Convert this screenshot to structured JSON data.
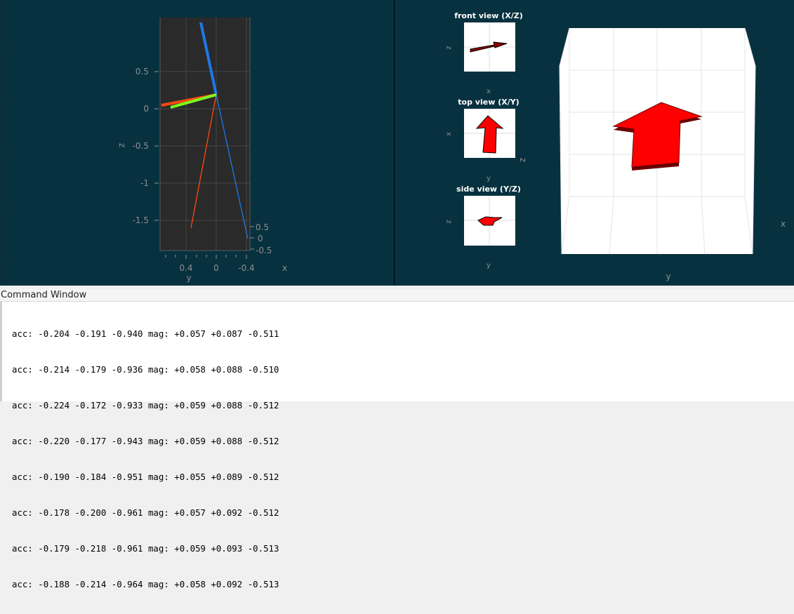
{
  "left_plot": {
    "z_ticks": [
      "0.5",
      "0",
      "-0.5",
      "-1",
      "-1.5"
    ],
    "z_label": "z",
    "y_ticks": [
      "0.4",
      "0",
      "-0.4"
    ],
    "y_label": "y",
    "x_ticks": [
      "0.5",
      "0",
      "-0.5"
    ],
    "x_label": "x",
    "colors": {
      "background": "#2a2a2a",
      "grid": "#4a4a4a",
      "blue": "#1f78e6",
      "orange": "#ff4a10",
      "green": "#7bff1f"
    }
  },
  "right_plot": {
    "front_view": {
      "title": "front view (X/Z)",
      "xlabel": "x",
      "ylabel": "z"
    },
    "top_view": {
      "title": "top view (X/Y)",
      "xlabel": "y",
      "ylabel": "x"
    },
    "side_view": {
      "title": "side view (Y/Z)",
      "xlabel": "y",
      "ylabel": "z"
    },
    "main_view": {
      "ylabel": "y",
      "xlabel": "x",
      "zlabel": "z"
    },
    "colors": {
      "arrow": "#ff0000",
      "arrow_shadow": "#6b0000",
      "panel": "#ffffff"
    }
  },
  "command_window": {
    "title": "Command Window",
    "lines": [
      "acc: -0.204 -0.191 -0.940 mag: +0.057 +0.087 -0.511",
      "acc: -0.214 -0.179 -0.936 mag: +0.058 +0.088 -0.510",
      "acc: -0.224 -0.172 -0.933 mag: +0.059 +0.088 -0.512",
      "acc: -0.220 -0.177 -0.943 mag: +0.059 +0.088 -0.512",
      "acc: -0.190 -0.184 -0.951 mag: +0.055 +0.089 -0.512",
      "acc: -0.178 -0.200 -0.961 mag: +0.057 +0.092 -0.512",
      "acc: -0.179 -0.218 -0.961 mag: +0.059 +0.093 -0.513",
      "acc: -0.188 -0.214 -0.964 mag: +0.058 +0.092 -0.513"
    ]
  }
}
